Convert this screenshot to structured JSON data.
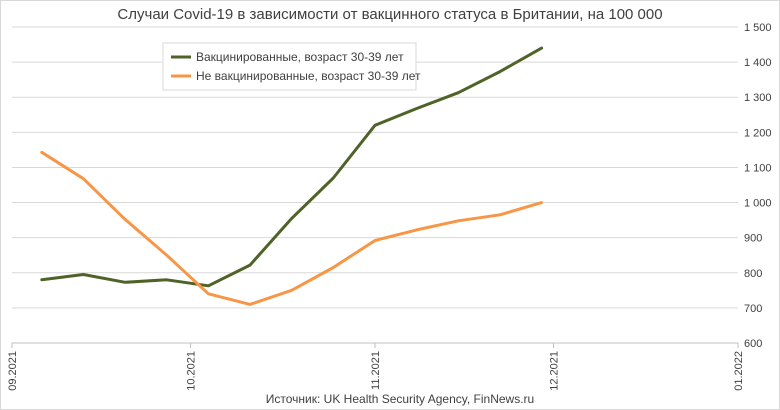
{
  "chart_data": {
    "type": "line",
    "title": "Случаи Covid-19 в зависимости от вакцинного статуса в Британии, на 100 000",
    "source": "Источник: UK Health Security Agency, FinNews.ru",
    "x_ticks": [
      {
        "label": "09.2021",
        "date": "2021-09-01"
      },
      {
        "label": "10.2021",
        "date": "2021-10-01"
      },
      {
        "label": "11.2021",
        "date": "2021-11-01"
      },
      {
        "label": "12.2021",
        "date": "2021-12-01"
      },
      {
        "label": "01.2022",
        "date": "2022-01-01"
      }
    ],
    "xlim": [
      "2021-09-01",
      "2022-01-01"
    ],
    "ylim": [
      600,
      1500
    ],
    "y_ticks": [
      600,
      700,
      800,
      900,
      1000,
      1100,
      1200,
      1300,
      1400,
      1500
    ],
    "y_tick_labels": [
      "600",
      "700",
      "800",
      "900",
      "1 000",
      "1 100",
      "1 200",
      "1 300",
      "1 400",
      "1 500"
    ],
    "y_axis_side": "right",
    "grid": "horizontal",
    "legend_position": "top-left",
    "series": [
      {
        "name": "Вакцинированные, возраст 30-39 лет",
        "color": "#4f6228",
        "points": [
          {
            "x": "2021-09-06",
            "y": 780
          },
          {
            "x": "2021-09-13",
            "y": 795
          },
          {
            "x": "2021-09-20",
            "y": 773
          },
          {
            "x": "2021-09-27",
            "y": 780
          },
          {
            "x": "2021-10-04",
            "y": 763
          },
          {
            "x": "2021-10-11",
            "y": 822
          },
          {
            "x": "2021-10-18",
            "y": 955
          },
          {
            "x": "2021-10-25",
            "y": 1070
          },
          {
            "x": "2021-11-01",
            "y": 1220
          },
          {
            "x": "2021-11-08",
            "y": 1268
          },
          {
            "x": "2021-11-15",
            "y": 1313
          },
          {
            "x": "2021-11-22",
            "y": 1373
          },
          {
            "x": "2021-11-29",
            "y": 1440
          }
        ]
      },
      {
        "name": "Не вакцинированные, возраст 30-39 лет",
        "color": "#f79646",
        "points": [
          {
            "x": "2021-09-06",
            "y": 1143
          },
          {
            "x": "2021-09-13",
            "y": 1068
          },
          {
            "x": "2021-09-20",
            "y": 952
          },
          {
            "x": "2021-09-27",
            "y": 850
          },
          {
            "x": "2021-10-04",
            "y": 740
          },
          {
            "x": "2021-10-11",
            "y": 710
          },
          {
            "x": "2021-10-18",
            "y": 750
          },
          {
            "x": "2021-10-25",
            "y": 815
          },
          {
            "x": "2021-11-01",
            "y": 892
          },
          {
            "x": "2021-11-08",
            "y": 922
          },
          {
            "x": "2021-11-15",
            "y": 948
          },
          {
            "x": "2021-11-22",
            "y": 965
          },
          {
            "x": "2021-11-29",
            "y": 1000
          }
        ]
      }
    ]
  }
}
